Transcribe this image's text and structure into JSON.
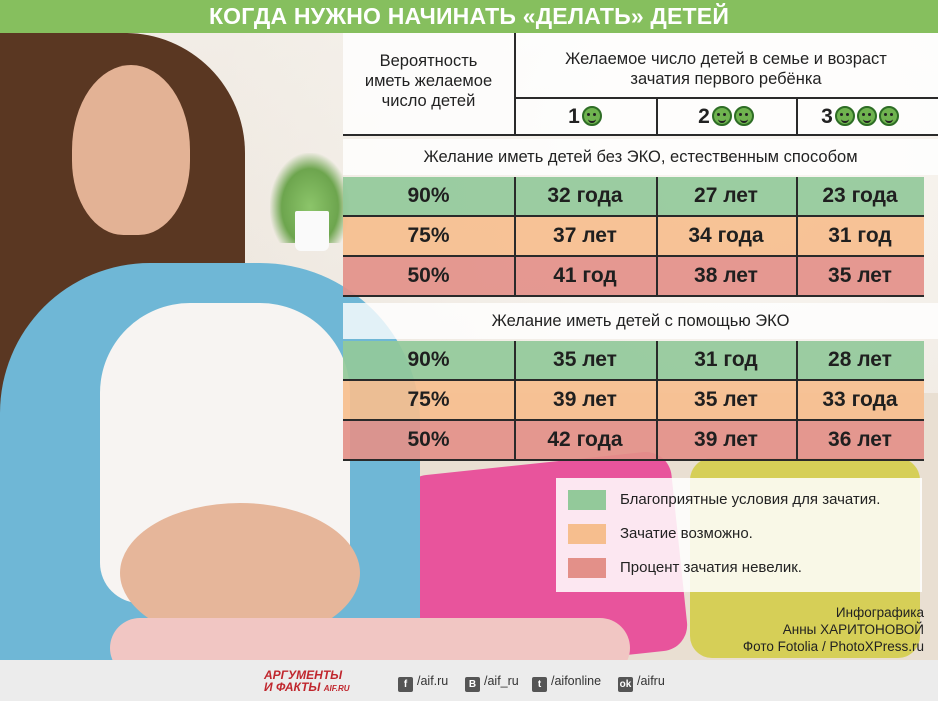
{
  "title": "КОГДА НУЖНО НАЧИНАТЬ «ДЕЛАТЬ» ДЕТЕЙ",
  "table": {
    "probability_header": [
      "Вероятность",
      "иметь желаемое",
      "число детей"
    ],
    "desired_header": [
      "Желаемое число детей в семье и возраст",
      "зачатия первого ребёнка"
    ],
    "children_counts": [
      {
        "label": "1",
        "faces": 1
      },
      {
        "label": "2",
        "faces": 2
      },
      {
        "label": "3",
        "faces": 3
      }
    ],
    "sections": [
      {
        "title": "Желание иметь детей без ЭКО, естественным способом",
        "rows": [
          {
            "probability": "90%",
            "level": "favorable",
            "values": [
              "32 года",
              "27 лет",
              "23 года"
            ]
          },
          {
            "probability": "75%",
            "level": "possible",
            "values": [
              "37 лет",
              "34 года",
              "31 год"
            ]
          },
          {
            "probability": "50%",
            "level": "low",
            "values": [
              "41 год",
              "38 лет",
              "35 лет"
            ]
          }
        ]
      },
      {
        "title": "Желание иметь детей с помощью ЭКО",
        "rows": [
          {
            "probability": "90%",
            "level": "favorable",
            "values": [
              "35 лет",
              "31 год",
              "28 лет"
            ]
          },
          {
            "probability": "75%",
            "level": "possible",
            "values": [
              "39 лет",
              "35 лет",
              "33 года"
            ]
          },
          {
            "probability": "50%",
            "level": "low",
            "values": [
              "42 года",
              "39 лет",
              "36 лет"
            ]
          }
        ]
      }
    ]
  },
  "legend": [
    {
      "level": "favorable",
      "text": "Благоприятные условия для зачатия."
    },
    {
      "level": "possible",
      "text": "Зачатие возможно."
    },
    {
      "level": "low",
      "text": "Процент зачатия невелик."
    }
  ],
  "colors": {
    "favorable": "#93c99a",
    "possible": "#f6be8e",
    "low": "#e39089",
    "header_bar": "#86bf5e"
  },
  "credits": [
    "Инфографика",
    "Анны ХАРИТОНОВОЙ",
    "Фото  Fotolia / PhotoXPress.ru"
  ],
  "footer": {
    "logo_line1": "АРГУМЕНТЫ",
    "logo_line2": "И ФАКТЫ",
    "logo_domain": "AIF.RU",
    "social": [
      {
        "icon": "facebook-icon",
        "glyph": "f",
        "handle": "/aif.ru"
      },
      {
        "icon": "vkontakte-icon",
        "glyph": "B",
        "handle": "/aif_ru"
      },
      {
        "icon": "twitter-icon",
        "glyph": "t",
        "handle": "/aifonline"
      },
      {
        "icon": "odnoklassniki-icon",
        "glyph": "ok",
        "handle": "/aifru"
      }
    ]
  }
}
